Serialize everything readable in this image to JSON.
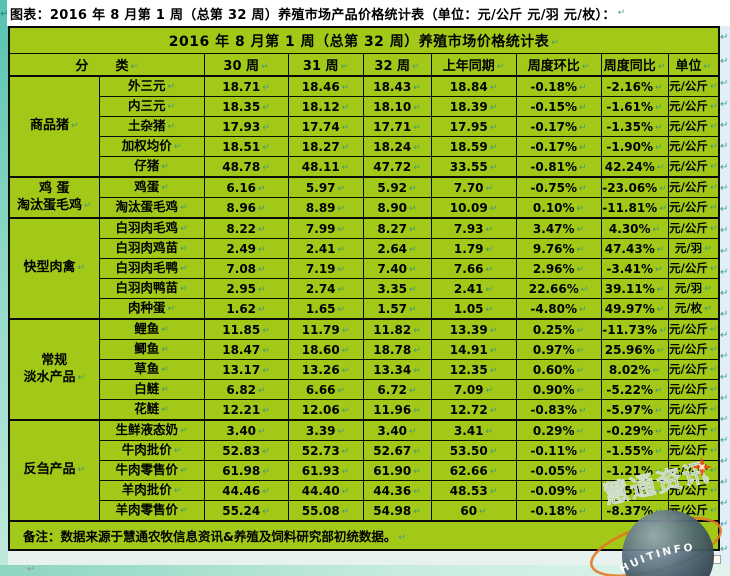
{
  "page": {
    "title": "图表：2016 年 8 月第 1 周（总第 32 周）养殖市场产品价格统计表（单位：元/公斤 元/羽  元/枚）：",
    "note": "备注：数据来源于慧通农牧信息资讯&养殖及饲料研究部初统数据。"
  },
  "table": {
    "caption": "2016 年 8 月第 1 周（总第 32 周）养殖市场价格统计表",
    "headers": {
      "category": "分      类",
      "cols": [
        "30 周",
        "31 周",
        "32 周",
        "上年同期",
        "周度环比",
        "周度同比",
        "单位"
      ]
    },
    "groups": [
      {
        "lines": [
          "商品猪"
        ],
        "start": 0,
        "span": 5
      },
      {
        "lines": [
          "鸡 蛋",
          "淘汰蛋毛鸡"
        ],
        "start": 5,
        "span": 2
      },
      {
        "lines": [
          "快型肉禽"
        ],
        "start": 7,
        "span": 5
      },
      {
        "lines": [
          "常规",
          "淡水产品"
        ],
        "start": 12,
        "span": 5
      },
      {
        "lines": [
          "反刍产品"
        ],
        "start": 17,
        "span": 5
      }
    ],
    "rows": [
      [
        "外三元",
        "18.71",
        "18.46",
        "18.43",
        "18.84",
        "-0.18%",
        "-2.16%",
        "元/公斤"
      ],
      [
        "内三元",
        "18.35",
        "18.12",
        "18.10",
        "18.39",
        "-0.15%",
        "-1.61%",
        "元/公斤"
      ],
      [
        "土杂猪",
        "17.93",
        "17.74",
        "17.71",
        "17.95",
        "-0.17%",
        "-1.35%",
        "元/公斤"
      ],
      [
        "加权均价",
        "18.51",
        "18.27",
        "18.24",
        "18.59",
        "-0.17%",
        "-1.90%",
        "元/公斤"
      ],
      [
        "仔猪",
        "48.78",
        "48.11",
        "47.72",
        "33.55",
        "-0.81%",
        "42.24%",
        "元/公斤"
      ],
      [
        "鸡蛋",
        "6.16",
        "5.97",
        "5.92",
        "7.70",
        "-0.75%",
        "-23.06%",
        "元/公斤"
      ],
      [
        "淘汰蛋毛鸡",
        "8.96",
        "8.89",
        "8.90",
        "10.09",
        "0.10%",
        "-11.81%",
        "元/公斤"
      ],
      [
        "白羽肉毛鸡",
        "8.22",
        "7.99",
        "8.27",
        "7.93",
        "3.47%",
        "4.30%",
        "元/公斤"
      ],
      [
        "白羽肉鸡苗",
        "2.49",
        "2.41",
        "2.64",
        "1.79",
        "9.76%",
        "47.43%",
        "元/羽"
      ],
      [
        "白羽肉毛鸭",
        "7.08",
        "7.19",
        "7.40",
        "7.66",
        "2.96%",
        "-3.41%",
        "元/公斤"
      ],
      [
        "白羽肉鸭苗",
        "2.95",
        "2.74",
        "3.35",
        "2.41",
        "22.66%",
        "39.11%",
        "元/羽"
      ],
      [
        "肉种蛋",
        "1.62",
        "1.65",
        "1.57",
        "1.05",
        "-4.80%",
        "49.97%",
        "元/枚"
      ],
      [
        "鲤鱼",
        "11.85",
        "11.79",
        "11.82",
        "13.39",
        "0.25%",
        "-11.73%",
        "元/公斤"
      ],
      [
        "鲫鱼",
        "18.47",
        "18.60",
        "18.78",
        "14.91",
        "0.97%",
        "25.96%",
        "元/公斤"
      ],
      [
        "草鱼",
        "13.17",
        "13.26",
        "13.34",
        "12.35",
        "0.60%",
        "8.02%",
        "元/公斤"
      ],
      [
        "白鲢",
        "6.82",
        "6.66",
        "6.72",
        "7.09",
        "0.90%",
        "-5.22%",
        "元/公斤"
      ],
      [
        "花鲢",
        "12.21",
        "12.06",
        "11.96",
        "12.72",
        "-0.83%",
        "-5.97%",
        "元/公斤"
      ],
      [
        "生鲜液态奶",
        "3.40",
        "3.39",
        "3.40",
        "3.41",
        "0.29%",
        "-0.29%",
        "元/公斤"
      ],
      [
        "牛肉批价",
        "52.83",
        "52.73",
        "52.67",
        "53.50",
        "-0.11%",
        "-1.55%",
        "元/公斤"
      ],
      [
        "牛肉零售价",
        "61.98",
        "61.93",
        "61.90",
        "62.66",
        "-0.05%",
        "-1.21%",
        "元/公斤"
      ],
      [
        "羊肉批价",
        "44.46",
        "44.40",
        "44.36",
        "48.53",
        "-0.09%",
        "-8.59%",
        "元/公斤"
      ],
      [
        "羊肉零售价",
        "55.24",
        "55.08",
        "54.98",
        "60",
        "-0.18%",
        "-8.37%",
        "元/公斤"
      ]
    ]
  },
  "watermark": {
    "brand_text": "慧通资讯",
    "globe_text": "HUITINFO"
  },
  "marks": {
    "pilcrow": "↵"
  },
  "colors": {
    "cell_green": "#a3c918",
    "border_black": "#0a0a0a",
    "title_bg": "#ffffff",
    "margin_teal": "#56c2ae",
    "margin_blue": "#e2eff7",
    "pilcrow_teal": "#2a8f8a",
    "watermark_orange": "#e2761f",
    "watermark_sphere": "#3c5260"
  }
}
